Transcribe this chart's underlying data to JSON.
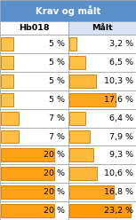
{
  "title": "Krav og målt",
  "title_bg": "#5B8FC9",
  "title_fg": "#FFFFFF",
  "col_headers": [
    "Hb018",
    "Målt"
  ],
  "rows": [
    {
      "krav": 5,
      "krav_label": "5 %",
      "malt": 3.2,
      "malt_label": "3,2 %"
    },
    {
      "krav": 5,
      "krav_label": "5 %",
      "malt": 6.5,
      "malt_label": "6,5 %"
    },
    {
      "krav": 5,
      "krav_label": "5 %",
      "malt": 10.3,
      "malt_label": "10,3 %"
    },
    {
      "krav": 5,
      "krav_label": "5 %",
      "malt": 17.6,
      "malt_label": "17,6 %"
    },
    {
      "krav": 7,
      "krav_label": "7 %",
      "malt": 6.4,
      "malt_label": "6,4 %"
    },
    {
      "krav": 7,
      "krav_label": "7 %",
      "malt": 7.9,
      "malt_label": "7,9 %"
    },
    {
      "krav": 20,
      "krav_label": "20 %",
      "malt": 9.3,
      "malt_label": "9,3 %"
    },
    {
      "krav": 20,
      "krav_label": "20 %",
      "malt": 10.6,
      "malt_label": "10,6 %"
    },
    {
      "krav": 20,
      "krav_label": "20 %",
      "malt": 16.8,
      "malt_label": "16,8 %"
    },
    {
      "krav": 20,
      "krav_label": "20 %",
      "malt": 23.2,
      "malt_label": "23,2 %"
    }
  ],
  "max_val": 25,
  "grid_color": "#999999",
  "font_size": 6.8
}
